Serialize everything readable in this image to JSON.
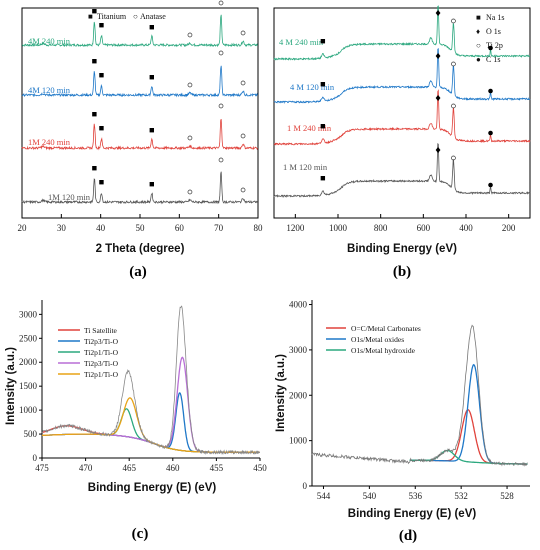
{
  "chart_data": [
    {
      "id": "a",
      "type": "line",
      "panel_label": "(a)",
      "xlabel": "2 Theta (degree)",
      "ylabel": "",
      "xlim": [
        20,
        80
      ],
      "xticks": [
        "20",
        "30",
        "40",
        "50",
        "60",
        "70",
        "80"
      ],
      "legend": [
        {
          "marker": "■",
          "name": "Titanium"
        },
        {
          "marker": "○",
          "name": "Anatase"
        }
      ],
      "series": [
        {
          "name": "4M 240 min",
          "color": "#2ca87f"
        },
        {
          "name": "4M 120 min",
          "color": "#1f78c8"
        },
        {
          "name": "1M 240 min",
          "color": "#e0423b"
        },
        {
          "name": "1M 120 min",
          "color": "#555555"
        }
      ],
      "titanium_peaks": [
        38.4,
        40.2,
        53.0
      ],
      "anatase_peaks": [
        62.7,
        70.6,
        76.2
      ]
    },
    {
      "id": "b",
      "type": "line",
      "panel_label": "(b)",
      "xlabel": "Binding Energy (eV)",
      "ylabel": "",
      "xlim": [
        1300,
        100
      ],
      "xticks": [
        "1200",
        "1000",
        "800",
        "600",
        "400",
        "200"
      ],
      "legend": [
        {
          "marker": "■",
          "name": "Na 1s"
        },
        {
          "marker": "♦",
          "name": "O 1s"
        },
        {
          "marker": "○",
          "name": "Ti 2p"
        },
        {
          "marker": "●",
          "name": "C 1s"
        }
      ],
      "series": [
        {
          "name": "4 M 240 min",
          "color": "#2ca87f"
        },
        {
          "name": "4 M 120 min",
          "color": "#1f78c8"
        },
        {
          "name": "1 M 240 min",
          "color": "#e0423b"
        },
        {
          "name": "1 M 120 min",
          "color": "#555555"
        }
      ],
      "peaks": {
        "Na 1s": 1071,
        "O 1s": 531,
        "Ti 2p": 459,
        "C 1s": 285
      }
    },
    {
      "id": "c",
      "type": "line",
      "panel_label": "(c)",
      "xlabel": "Binding Energy (E) (eV)",
      "ylabel": "Intensity (a.u.)",
      "xlim": [
        475,
        450
      ],
      "ylim": [
        0,
        3300
      ],
      "xticks": [
        "475",
        "470",
        "465",
        "460",
        "455",
        "450"
      ],
      "yticks": [
        "0",
        "500",
        "1000",
        "1500",
        "2000",
        "2500",
        "3000"
      ],
      "series": [
        {
          "name": "Ti Satellite",
          "color": "#e0423b"
        },
        {
          "name": "Ti2p3/Ti-O",
          "color": "#1f78c8"
        },
        {
          "name": "Ti2p1/Ti-O",
          "color": "#2ca87f"
        },
        {
          "name": "Ti2p3/Ti-O",
          "color": "#b86fd6"
        },
        {
          "name": "Ti2p1/Ti-O",
          "color": "#e8a317"
        }
      ]
    },
    {
      "id": "d",
      "type": "line",
      "panel_label": "(d)",
      "xlabel": "Binding Energy (E) (eV)",
      "ylabel": "Intensity (a.u.)",
      "xlim": [
        545,
        526
      ],
      "ylim": [
        0,
        4100
      ],
      "xticks": [
        "544",
        "540",
        "536",
        "532",
        "528"
      ],
      "yticks": [
        "0",
        "1000",
        "2000",
        "3000",
        "4000"
      ],
      "series": [
        {
          "name": "O=C/Metal Carbonates",
          "color": "#e0423b"
        },
        {
          "name": "O1s/Metal oxides",
          "color": "#1f78c8"
        },
        {
          "name": "O1s/Metal hydroxide",
          "color": "#2ca87f"
        }
      ]
    }
  ]
}
